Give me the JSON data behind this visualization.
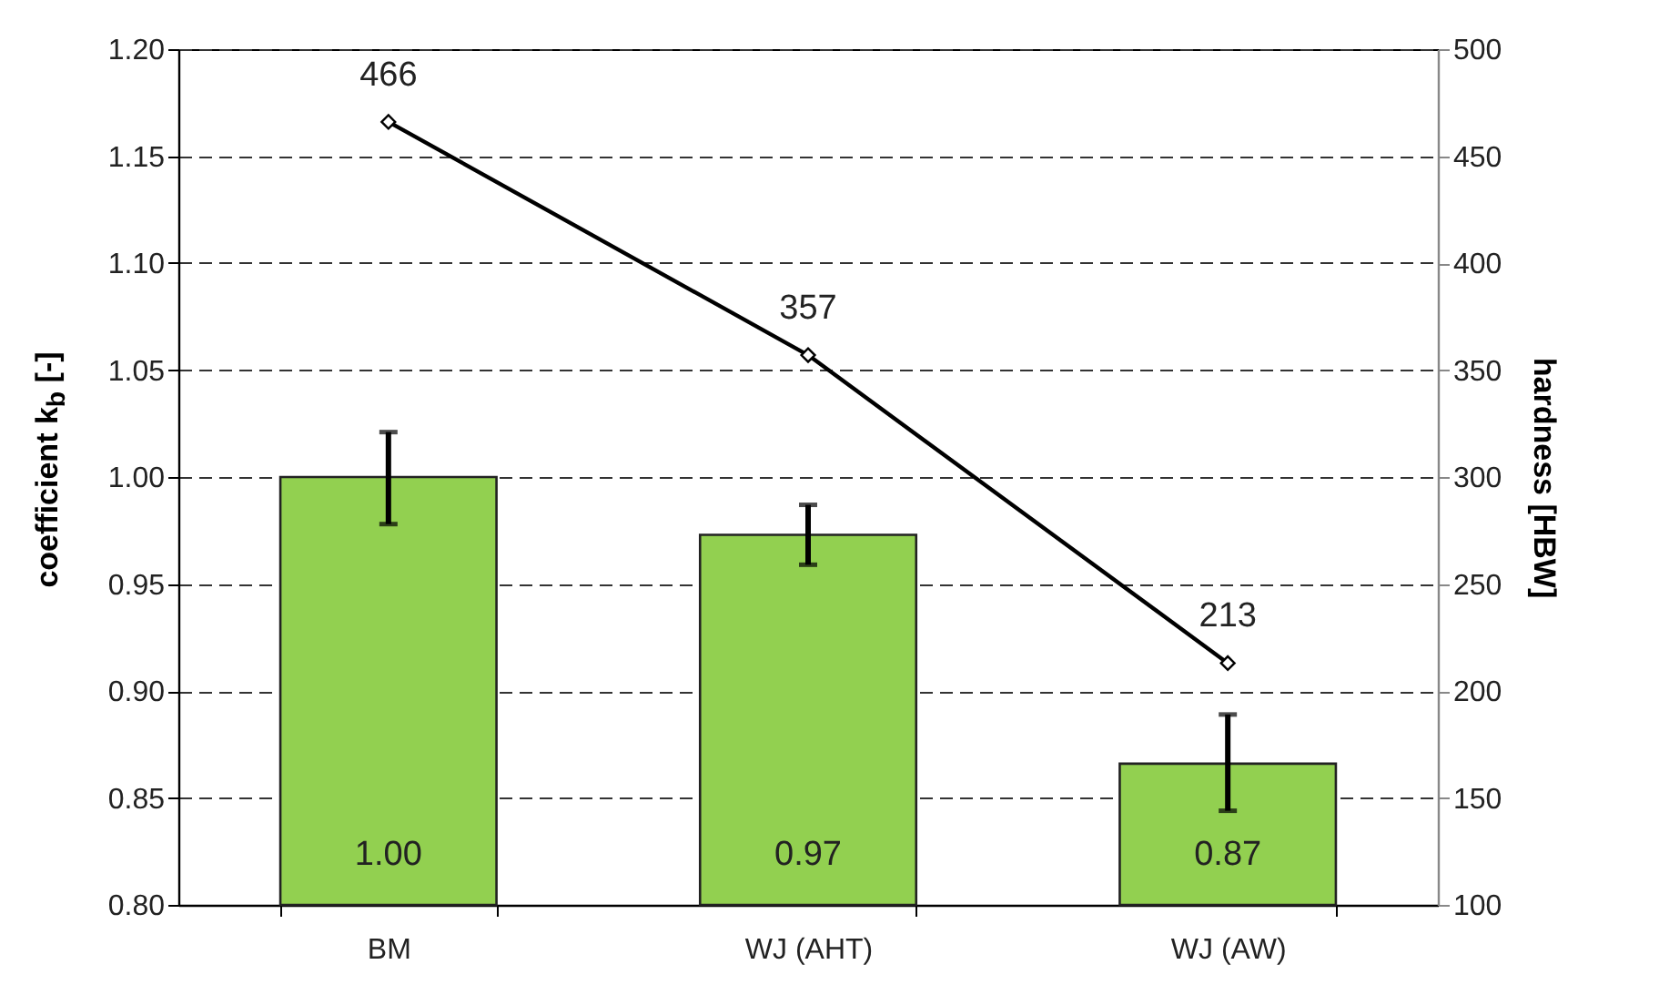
{
  "chart_data": {
    "type": "bar",
    "categories": [
      "BM",
      "WJ (AHT)",
      "WJ (AW)"
    ],
    "ylabel": "coefficient k$_{b}$ [-]",
    "y2label": "hardness  [HBW]",
    "ylim": [
      0.8,
      1.2
    ],
    "yticks": [
      {
        "value": 0.8,
        "label": "0.80"
      },
      {
        "value": 0.85,
        "label": "0.85"
      },
      {
        "value": 0.9,
        "label": "0.90"
      },
      {
        "value": 0.95,
        "label": "0.95"
      },
      {
        "value": 1.0,
        "label": "1.00"
      },
      {
        "value": 1.05,
        "label": "1.05"
      },
      {
        "value": 1.1,
        "label": "1.10"
      },
      {
        "value": 1.15,
        "label": "1.15"
      },
      {
        "value": 1.2,
        "label": "1.20"
      }
    ],
    "y2lim": [
      100,
      500
    ],
    "y2ticks": [
      100,
      150,
      200,
      250,
      300,
      350,
      400,
      450,
      500
    ],
    "grid": "y",
    "legend": false,
    "series": [
      {
        "color": "#92d050",
        "values": [
          1.0,
          0.973,
          0.866
        ],
        "errors": [
          [
            0.978,
            1.021
          ],
          [
            0.959,
            0.987
          ],
          [
            0.844,
            0.889
          ]
        ],
        "value_labels": [
          "1.00",
          "0.97",
          "0.87"
        ]
      },
      {
        "type": "line",
        "axis": "y2",
        "color": "#000000",
        "values": [
          466,
          357,
          213
        ],
        "marker": "diamond",
        "line_style": "solid",
        "value_labels": [
          "466",
          "357",
          "213"
        ]
      }
    ]
  }
}
